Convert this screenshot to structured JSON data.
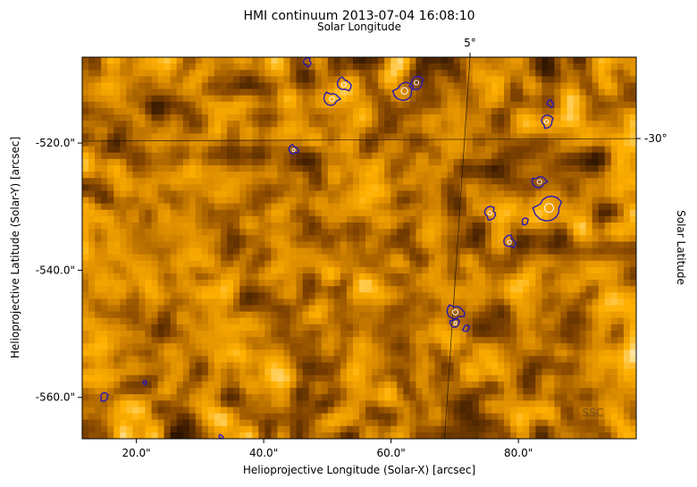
{
  "chart_data": {
    "type": "heatmap",
    "title": "HMI continuum 2013-07-04 16:08:10",
    "xlabel": "Helioprojective Longitude (Solar-X) [arcsec]",
    "ylabel": "Helioprojective Latitude (Solar-Y) [arcsec]",
    "top_label": "Solar Longitude",
    "right_label": "Solar Latitude",
    "xlim": [
      11.5,
      98.5
    ],
    "ylim": [
      -566.5,
      -506.5
    ],
    "x_ticks": [
      {
        "value": 20,
        "label": "20.0\""
      },
      {
        "value": 40,
        "label": "40.0\""
      },
      {
        "value": 60,
        "label": "60.0\""
      },
      {
        "value": 80,
        "label": "80.0\""
      }
    ],
    "y_ticks": [
      {
        "value": -520,
        "label": "-520.0\""
      },
      {
        "value": -540,
        "label": "-540.0\""
      },
      {
        "value": -560,
        "label": "-560.0\""
      }
    ],
    "longitude_lines": [
      {
        "label": "5°",
        "points": [
          [
            72.4,
            -506.5
          ],
          [
            68.4,
            -566.5
          ]
        ]
      }
    ],
    "latitude_lines": [
      {
        "label": "-30°",
        "points": [
          [
            11.5,
            -519.7
          ],
          [
            98.5,
            -519.3
          ]
        ]
      }
    ],
    "colormap": [
      "#000000",
      "#3a1a00",
      "#8a4a00",
      "#d98a00",
      "#ffb000",
      "#ffe6a0"
    ],
    "contour_colors": {
      "outer": "#2a1ab0",
      "inner": "#f2f2f2"
    },
    "contour_regions": [
      {
        "x": 46.8,
        "y": -507.3,
        "r": 0.6
      },
      {
        "x": 52.6,
        "y": -510.8,
        "r": 1.0
      },
      {
        "x": 50.7,
        "y": -513.1,
        "r": 1.1
      },
      {
        "x": 62.1,
        "y": -511.8,
        "r": 1.5
      },
      {
        "x": 64.0,
        "y": -510.5,
        "r": 1.0
      },
      {
        "x": 84.4,
        "y": -516.6,
        "r": 0.9
      },
      {
        "x": 85.0,
        "y": -513.8,
        "r": 0.5
      },
      {
        "x": 44.7,
        "y": -521.1,
        "r": 0.7
      },
      {
        "x": 83.3,
        "y": -526.1,
        "r": 1.0
      },
      {
        "x": 84.8,
        "y": -530.2,
        "r": 2.0
      },
      {
        "x": 81.0,
        "y": -532.3,
        "r": 0.5
      },
      {
        "x": 75.5,
        "y": -531.0,
        "r": 0.9
      },
      {
        "x": 78.6,
        "y": -535.6,
        "r": 0.9
      },
      {
        "x": 70.1,
        "y": -546.6,
        "r": 1.2
      },
      {
        "x": 70.1,
        "y": -548.3,
        "r": 0.7
      },
      {
        "x": 71.8,
        "y": -549.1,
        "r": 0.5
      },
      {
        "x": 14.9,
        "y": -559.9,
        "r": 0.6
      },
      {
        "x": 21.3,
        "y": -557.7,
        "r": 0.3
      },
      {
        "x": 33.3,
        "y": -566.2,
        "r": 0.3
      }
    ],
    "watermark": "SSC",
    "watermark_value": {
      "x": 91.7,
      "y": -563.0
    }
  }
}
